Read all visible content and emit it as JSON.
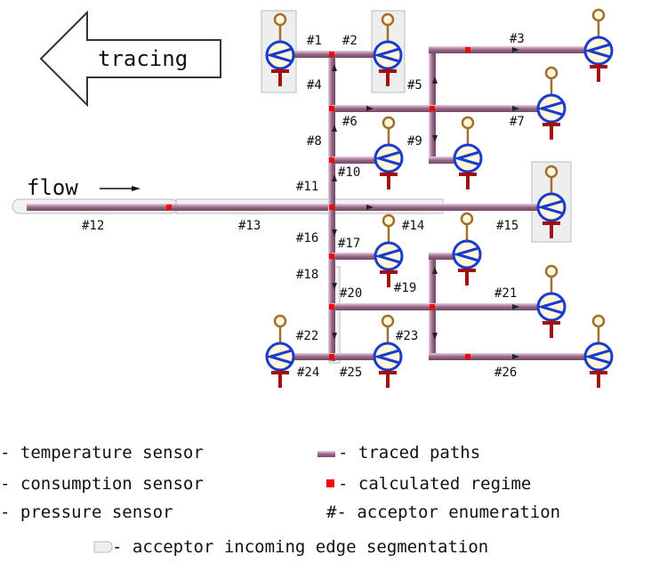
{
  "labels": {
    "tracing": "tracing",
    "flow": "flow"
  },
  "nodes": {
    "n1": "#1",
    "n2": "#2",
    "n3": "#3",
    "n4": "#4",
    "n5": "#5",
    "n6": "#6",
    "n7": "#7",
    "n8": "#8",
    "n9": "#9",
    "n10": "#10",
    "n11": "#11",
    "n12": "#12",
    "n13": "#13",
    "n14": "#14",
    "n15": "#15",
    "n16": "#16",
    "n17": "#17",
    "n18": "#18",
    "n19": "#19",
    "n20": "#20",
    "n21": "#21",
    "n22": "#22",
    "n23": "#23",
    "n24": "#24",
    "n25": "#25",
    "n26": "#26"
  },
  "legend": {
    "temperature": "- temperature sensor",
    "consumption": "- consumption sensor",
    "pressure": "- pressure sensor",
    "traced": "- traced paths",
    "regime": "- calculated regime",
    "enumeration": "#- acceptor enumeration",
    "segmentation": "- acceptor incoming edge segmentation"
  },
  "colors": {
    "pipe": "#a0708f",
    "pipe_light": "#d8b6c8",
    "regime": "#ff0000",
    "consumption_sensor": "#1a3ccc",
    "consumption_fill": "#fff8dc",
    "temperature_sensor": "#a0702a",
    "pressure_sensor": "#a01010",
    "segment_box": "#eeeeee"
  }
}
